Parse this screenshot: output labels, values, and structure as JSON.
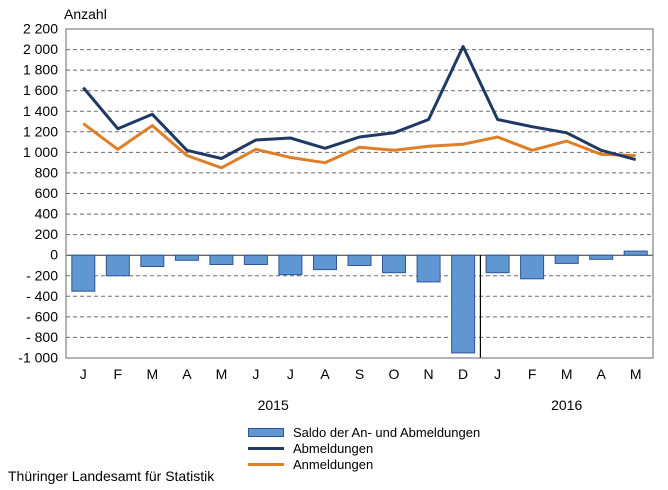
{
  "chart": {
    "y_axis_title": "Anzahl",
    "y_tick_values": [
      2200,
      2000,
      1800,
      1600,
      1400,
      1200,
      1000,
      800,
      600,
      400,
      200,
      0,
      -200,
      -400,
      -600,
      -800,
      -1000
    ],
    "y_tick_labels": [
      "2 200",
      "2 000",
      "1 800",
      "1 600",
      "1 400",
      "1 200",
      "1 000",
      "800",
      "600",
      "400",
      "200",
      "0",
      "- 200",
      "- 400",
      "- 600",
      "- 800",
      "-1 000"
    ]
  },
  "chart_data": {
    "type": "combo-bar-line",
    "title": "",
    "ylabel": "Anzahl",
    "ylim": [
      -1000,
      2200
    ],
    "ytick_step": 200,
    "grid": "horizontal dashed",
    "legend_position": "bottom",
    "x_labels": [
      "J",
      "F",
      "M",
      "A",
      "M",
      "J",
      "J",
      "A",
      "S",
      "O",
      "N",
      "D",
      "J",
      "F",
      "M",
      "A",
      "M"
    ],
    "years": [
      {
        "label": "2015",
        "from_index": 0,
        "to_index": 11
      },
      {
        "label": "2016",
        "from_index": 12,
        "to_index": 16
      }
    ],
    "year_separator_after_index": 11,
    "series": [
      {
        "name": "Saldo der An- und Abmeldungen",
        "type": "bar",
        "values": [
          -350,
          -200,
          -110,
          -50,
          -90,
          -90,
          -190,
          -140,
          -100,
          -170,
          -260,
          -950,
          -170,
          -230,
          -80,
          -40,
          40
        ]
      },
      {
        "name": "Abmeldungen",
        "type": "line",
        "values": [
          1630,
          1230,
          1370,
          1020,
          940,
          1120,
          1140,
          1040,
          1150,
          1190,
          1320,
          2030,
          1320,
          1250,
          1190,
          1020,
          930
        ]
      },
      {
        "name": "Anmeldungen",
        "type": "line",
        "values": [
          1280,
          1030,
          1260,
          970,
          850,
          1030,
          950,
          900,
          1050,
          1020,
          1060,
          1080,
          1150,
          1020,
          1110,
          980,
          970
        ]
      }
    ]
  },
  "legend": {
    "items": [
      {
        "label": "Saldo der An- und Abmeldungen",
        "swatch": "bar"
      },
      {
        "label": "Abmeldungen",
        "swatch": "line",
        "series": "abmeldungen"
      },
      {
        "label": "Anmeldungen",
        "swatch": "line",
        "series": "anmeldungen"
      }
    ]
  },
  "footer": {
    "text": "Thüringer Landesamt für Statistik"
  },
  "colors": {
    "abmeldungen": "#1F3864",
    "anmeldungen": "#E07E28",
    "saldo_fill": "#6096D2",
    "saldo_border": "#2F5596",
    "frame": "#808080",
    "grid": "#6B6B6B",
    "zero_line": "#333333",
    "separator": "#000000",
    "text": "#000000"
  }
}
